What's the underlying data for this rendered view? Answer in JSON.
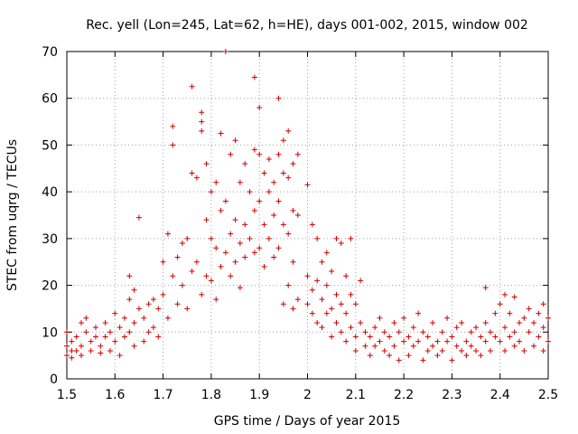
{
  "chart_data": {
    "type": "scatter",
    "title": "Rec. yell (Lon=245, Lat=62, h=HE), days 001-002, 2015, window 002",
    "xlabel": "GPS time / Days of year 2015",
    "ylabel": "STEC from uqrg / TECUs",
    "xlim": [
      1.5,
      2.5
    ],
    "ylim": [
      0,
      70
    ],
    "x_ticks": [
      "1.5",
      "1.6",
      "1.7",
      "1.8",
      "1.9",
      "2",
      "2.1",
      "2.2",
      "2.3",
      "2.4",
      "2.5"
    ],
    "y_ticks": [
      "0",
      "10",
      "20",
      "30",
      "40",
      "50",
      "60",
      "70"
    ],
    "grid": true,
    "legend": "none",
    "marker": "plus",
    "color": "#d00000",
    "series": [
      {
        "points": [
          [
            1.5,
            7
          ],
          [
            1.5,
            5
          ],
          [
            1.5,
            10
          ],
          [
            1.51,
            6
          ],
          [
            1.51,
            8
          ],
          [
            1.51,
            4.5
          ],
          [
            1.52,
            9
          ],
          [
            1.52,
            6
          ],
          [
            1.53,
            12
          ],
          [
            1.53,
            7
          ],
          [
            1.53,
            5
          ],
          [
            1.54,
            10
          ],
          [
            1.54,
            13
          ],
          [
            1.55,
            8
          ],
          [
            1.55,
            6
          ],
          [
            1.56,
            11
          ],
          [
            1.56,
            9
          ],
          [
            1.57,
            7
          ],
          [
            1.57,
            5.5
          ],
          [
            1.58,
            12
          ],
          [
            1.58,
            9
          ],
          [
            1.59,
            10
          ],
          [
            1.59,
            6
          ],
          [
            1.6,
            14
          ],
          [
            1.6,
            8
          ],
          [
            1.61,
            11
          ],
          [
            1.61,
            5
          ],
          [
            1.62,
            13
          ],
          [
            1.62,
            9
          ],
          [
            1.63,
            22
          ],
          [
            1.63,
            17
          ],
          [
            1.63,
            10
          ],
          [
            1.64,
            19
          ],
          [
            1.64,
            12
          ],
          [
            1.64,
            7
          ],
          [
            1.65,
            34.5
          ],
          [
            1.65,
            15
          ],
          [
            1.66,
            13
          ],
          [
            1.66,
            8
          ],
          [
            1.67,
            16
          ],
          [
            1.67,
            10
          ],
          [
            1.68,
            17
          ],
          [
            1.68,
            11
          ],
          [
            1.69,
            15
          ],
          [
            1.69,
            9
          ],
          [
            1.7,
            25
          ],
          [
            1.7,
            18
          ],
          [
            1.71,
            31
          ],
          [
            1.71,
            13
          ],
          [
            1.72,
            54
          ],
          [
            1.72,
            50
          ],
          [
            1.72,
            22
          ],
          [
            1.73,
            26
          ],
          [
            1.73,
            16
          ],
          [
            1.74,
            29
          ],
          [
            1.74,
            20
          ],
          [
            1.75,
            30
          ],
          [
            1.75,
            15
          ],
          [
            1.76,
            62.5
          ],
          [
            1.76,
            44
          ],
          [
            1.76,
            23
          ],
          [
            1.77,
            43
          ],
          [
            1.77,
            25
          ],
          [
            1.78,
            57
          ],
          [
            1.78,
            55
          ],
          [
            1.78,
            53
          ],
          [
            1.78,
            18
          ],
          [
            1.79,
            46
          ],
          [
            1.79,
            34
          ],
          [
            1.79,
            22
          ],
          [
            1.8,
            40
          ],
          [
            1.8,
            30
          ],
          [
            1.8,
            21
          ],
          [
            1.81,
            42
          ],
          [
            1.81,
            28
          ],
          [
            1.81,
            17
          ],
          [
            1.82,
            52.5
          ],
          [
            1.82,
            36
          ],
          [
            1.82,
            24
          ],
          [
            1.83,
            70
          ],
          [
            1.83,
            38
          ],
          [
            1.83,
            27
          ],
          [
            1.84,
            48
          ],
          [
            1.84,
            31
          ],
          [
            1.84,
            22
          ],
          [
            1.85,
            51
          ],
          [
            1.85,
            34
          ],
          [
            1.85,
            25
          ],
          [
            1.86,
            42
          ],
          [
            1.86,
            29
          ],
          [
            1.86,
            19.5
          ],
          [
            1.87,
            46
          ],
          [
            1.87,
            33
          ],
          [
            1.87,
            26
          ],
          [
            1.88,
            40
          ],
          [
            1.88,
            30
          ],
          [
            1.89,
            64.5
          ],
          [
            1.89,
            49
          ],
          [
            1.89,
            36
          ],
          [
            1.89,
            27
          ],
          [
            1.9,
            58
          ],
          [
            1.9,
            48
          ],
          [
            1.9,
            38
          ],
          [
            1.9,
            28
          ],
          [
            1.91,
            44
          ],
          [
            1.91,
            33
          ],
          [
            1.91,
            24
          ],
          [
            1.92,
            47
          ],
          [
            1.92,
            40
          ],
          [
            1.92,
            30
          ],
          [
            1.93,
            42
          ],
          [
            1.93,
            35
          ],
          [
            1.93,
            26
          ],
          [
            1.94,
            60
          ],
          [
            1.94,
            48
          ],
          [
            1.94,
            38
          ],
          [
            1.94,
            28
          ],
          [
            1.95,
            51
          ],
          [
            1.95,
            44
          ],
          [
            1.95,
            33
          ],
          [
            1.95,
            16
          ],
          [
            1.96,
            53
          ],
          [
            1.96,
            43
          ],
          [
            1.96,
            31
          ],
          [
            1.96,
            20
          ],
          [
            1.97,
            46
          ],
          [
            1.97,
            36
          ],
          [
            1.97,
            25
          ],
          [
            1.97,
            15
          ],
          [
            1.98,
            48
          ],
          [
            1.98,
            35
          ],
          [
            1.98,
            17
          ],
          [
            2.0,
            41.5
          ],
          [
            2.0,
            22
          ],
          [
            2.0,
            16
          ],
          [
            2.01,
            33
          ],
          [
            2.01,
            19
          ],
          [
            2.01,
            14
          ],
          [
            2.02,
            30
          ],
          [
            2.02,
            21
          ],
          [
            2.02,
            12
          ],
          [
            2.03,
            25
          ],
          [
            2.03,
            17
          ],
          [
            2.03,
            11
          ],
          [
            2.04,
            27
          ],
          [
            2.04,
            20
          ],
          [
            2.04,
            14
          ],
          [
            2.05,
            23
          ],
          [
            2.05,
            15
          ],
          [
            2.05,
            9
          ],
          [
            2.06,
            30
          ],
          [
            2.06,
            18
          ],
          [
            2.06,
            12
          ],
          [
            2.07,
            29
          ],
          [
            2.07,
            16
          ],
          [
            2.07,
            10
          ],
          [
            2.08,
            22
          ],
          [
            2.08,
            14
          ],
          [
            2.08,
            8
          ],
          [
            2.09,
            30
          ],
          [
            2.09,
            18
          ],
          [
            2.09,
            11
          ],
          [
            2.1,
            16
          ],
          [
            2.1,
            9
          ],
          [
            2.1,
            6
          ],
          [
            2.11,
            21
          ],
          [
            2.11,
            12
          ],
          [
            2.12,
            10
          ],
          [
            2.12,
            7
          ],
          [
            2.13,
            9
          ],
          [
            2.13,
            5
          ],
          [
            2.14,
            11
          ],
          [
            2.14,
            7
          ],
          [
            2.15,
            13
          ],
          [
            2.15,
            8
          ],
          [
            2.16,
            10
          ],
          [
            2.16,
            6
          ],
          [
            2.17,
            9
          ],
          [
            2.17,
            5
          ],
          [
            2.18,
            12
          ],
          [
            2.18,
            7
          ],
          [
            2.19,
            10
          ],
          [
            2.19,
            4
          ],
          [
            2.2,
            13
          ],
          [
            2.2,
            8
          ],
          [
            2.21,
            9
          ],
          [
            2.21,
            5
          ],
          [
            2.22,
            11
          ],
          [
            2.22,
            7
          ],
          [
            2.23,
            14
          ],
          [
            2.23,
            8
          ],
          [
            2.24,
            10
          ],
          [
            2.24,
            4
          ],
          [
            2.25,
            9
          ],
          [
            2.25,
            6
          ],
          [
            2.26,
            12
          ],
          [
            2.26,
            7
          ],
          [
            2.27,
            8
          ],
          [
            2.27,
            5
          ],
          [
            2.28,
            10
          ],
          [
            2.28,
            6
          ],
          [
            2.29,
            13
          ],
          [
            2.29,
            8
          ],
          [
            2.3,
            9
          ],
          [
            2.3,
            4
          ],
          [
            2.31,
            11
          ],
          [
            2.31,
            7
          ],
          [
            2.32,
            12
          ],
          [
            2.32,
            6
          ],
          [
            2.33,
            8
          ],
          [
            2.33,
            5
          ],
          [
            2.34,
            10
          ],
          [
            2.34,
            7
          ],
          [
            2.35,
            11
          ],
          [
            2.35,
            6
          ],
          [
            2.36,
            9
          ],
          [
            2.36,
            5
          ],
          [
            2.37,
            19.5
          ],
          [
            2.37,
            12
          ],
          [
            2.37,
            8
          ],
          [
            2.38,
            10
          ],
          [
            2.38,
            6
          ],
          [
            2.39,
            14
          ],
          [
            2.39,
            9
          ],
          [
            2.4,
            16
          ],
          [
            2.4,
            8
          ],
          [
            2.41,
            18
          ],
          [
            2.41,
            11
          ],
          [
            2.41,
            6
          ],
          [
            2.42,
            14
          ],
          [
            2.42,
            9
          ],
          [
            2.43,
            17.5
          ],
          [
            2.43,
            10
          ],
          [
            2.43,
            7
          ],
          [
            2.44,
            12
          ],
          [
            2.44,
            8
          ],
          [
            2.45,
            13
          ],
          [
            2.45,
            6
          ],
          [
            2.46,
            15
          ],
          [
            2.46,
            10
          ],
          [
            2.47,
            12
          ],
          [
            2.47,
            7
          ],
          [
            2.48,
            14
          ],
          [
            2.48,
            9
          ],
          [
            2.49,
            16
          ],
          [
            2.49,
            11
          ],
          [
            2.49,
            6
          ],
          [
            2.5,
            13
          ],
          [
            2.5,
            8
          ]
        ]
      }
    ]
  }
}
